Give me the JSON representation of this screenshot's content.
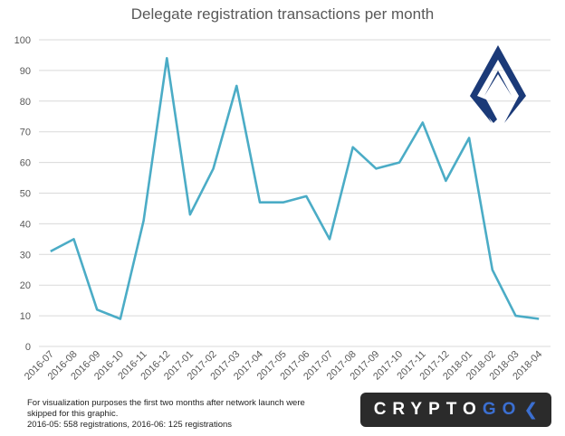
{
  "chart_data": {
    "type": "line",
    "title": "Delegate registration transactions per month",
    "categories": [
      "2016-07",
      "2016-08",
      "2016-09",
      "2016-10",
      "2016-11",
      "2016-12",
      "2017-01",
      "2017-02",
      "2017-03",
      "2017-04",
      "2017-05",
      "2017-06",
      "2017-07",
      "2017-08",
      "2017-09",
      "2017-10",
      "2017-11",
      "2017-12",
      "2018-01",
      "2018-02",
      "2018-03",
      "2018-04"
    ],
    "series": [
      {
        "values": [
          31,
          35,
          12,
          9,
          41,
          94,
          43,
          58,
          85,
          47,
          47,
          49,
          35,
          65,
          58,
          60,
          73,
          54,
          68,
          25,
          10,
          9
        ]
      }
    ],
    "ylim": [
      0,
      100
    ],
    "yticks": [
      0,
      10,
      20,
      30,
      40,
      50,
      60,
      70,
      80,
      90,
      100
    ],
    "grid": true,
    "line_color": "#4bacc6"
  },
  "footnote": {
    "line1": "For visualization purposes the first two months after network launch were",
    "line2": "skipped for this graphic.",
    "line3": "2016-05: 558 registrations, 2016-06: 125 registrations"
  },
  "brand": {
    "text_main": "CRYPTO",
    "text_accent": "GO",
    "background": "#2b2b2b",
    "accent_color": "#3b6fd1"
  },
  "logo": {
    "icon": "lisk-logo-icon",
    "color": "#1b3a78"
  }
}
